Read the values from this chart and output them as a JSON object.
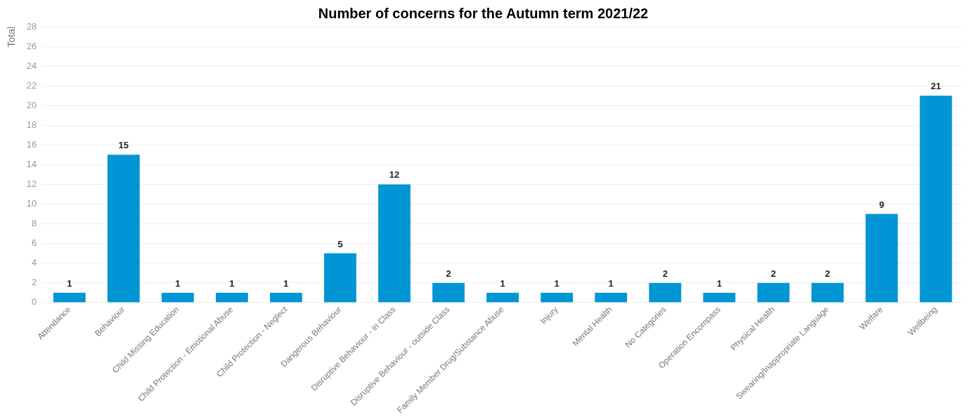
{
  "chart_data": {
    "type": "bar",
    "title": "Number of concerns for the Autumn term 2021/22",
    "ylabel": "Total",
    "categories": [
      "Attendance",
      "Behaviour",
      "Child Missing Education",
      "Child Protection - Emotional Abuse",
      "Child Protection - Neglect",
      "Dangerous Behaviour",
      "Disruptive Behaviour - in Class",
      "Disruptive Behaviour - outside Class",
      "Family Member Drug/Substance Abuse",
      "Injury",
      "Mental Health",
      "No Categories",
      "Operation Encompass",
      "Physical Health",
      "Swearing/Inappropriate Language",
      "Welfare",
      "Wellbeing"
    ],
    "values": [
      1,
      15,
      1,
      1,
      1,
      5,
      12,
      2,
      1,
      1,
      1,
      2,
      1,
      2,
      2,
      9,
      21
    ],
    "color": "#0096d6",
    "ylim": [
      0,
      28
    ],
    "yticks": [
      0,
      2,
      4,
      6,
      8,
      10,
      12,
      14,
      16,
      18,
      20,
      22,
      24,
      26,
      28
    ],
    "grid": "y",
    "data_labels": true,
    "legend": false
  }
}
